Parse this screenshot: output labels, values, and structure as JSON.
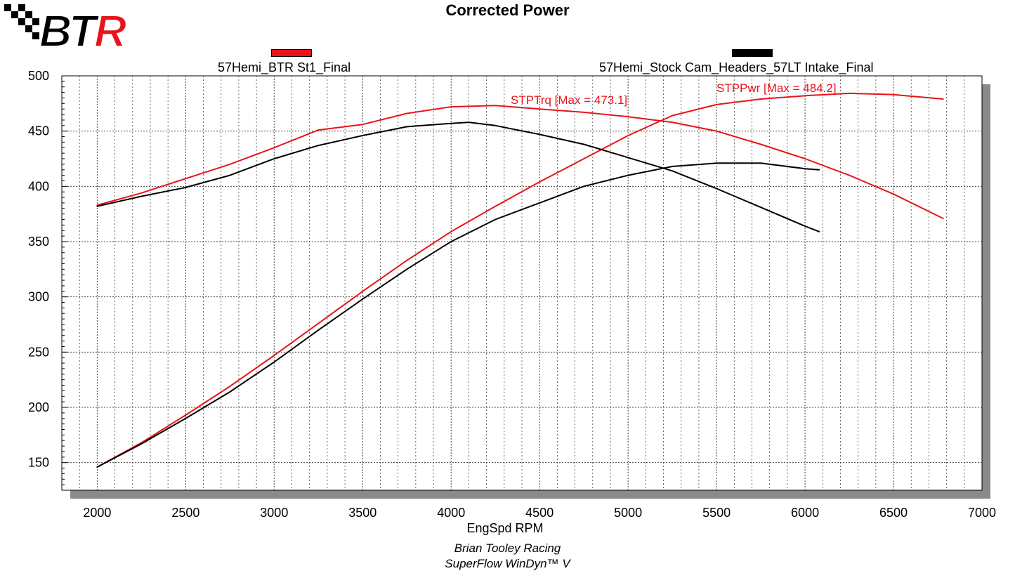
{
  "colors": {
    "red": "#e8141a",
    "black": "#000000",
    "grid": "#555555",
    "shadow": "#8a8a8a"
  },
  "logo_text": "BTR",
  "chart_data": {
    "type": "line",
    "title": "Corrected Power",
    "xlabel": "EngSpd RPM",
    "xlim": [
      1800,
      7000
    ],
    "ylim": [
      125,
      500
    ],
    "x_ticks": [
      "2000",
      "2500",
      "3000",
      "3500",
      "4000",
      "4500",
      "5000",
      "5500",
      "6000",
      "6500",
      "7000"
    ],
    "y_ticks": [
      "150",
      "200",
      "250",
      "300",
      "350",
      "400",
      "450",
      "500"
    ],
    "grid": true,
    "legend": [
      {
        "label": "57Hemi_BTR St1_Final",
        "color": "#e8141a"
      },
      {
        "label": "57Hemi_Stock Cam_Headers_57LT Intake_Final",
        "color": "#000000"
      }
    ],
    "annotations": [
      {
        "text": "STPTrq [Max = 473.1]",
        "color": "#e8141a"
      },
      {
        "text": "STPPwr [Max = 484.2]",
        "color": "#e8141a"
      }
    ],
    "series": [
      {
        "run": "57Hemi_BTR St1_Final",
        "quantity": "STPTrq",
        "color": "#e8141a",
        "x": [
          2000,
          2250,
          2500,
          2750,
          3000,
          3250,
          3500,
          3750,
          4000,
          4250,
          4500,
          4750,
          5000,
          5250,
          5500,
          5750,
          6000,
          6250,
          6500,
          6780
        ],
        "y": [
          383,
          394,
          407,
          420,
          435,
          451,
          456,
          466,
          472,
          473.1,
          470,
          467,
          463,
          458,
          450,
          438,
          425,
          410,
          393,
          371
        ]
      },
      {
        "run": "57Hemi_BTR St1_Final",
        "quantity": "STPPwr",
        "color": "#e8141a",
        "x": [
          2000,
          2250,
          2500,
          2750,
          3000,
          3250,
          3500,
          3750,
          4000,
          4250,
          4500,
          4750,
          5000,
          5250,
          5500,
          5750,
          6000,
          6250,
          6500,
          6780
        ],
        "y": [
          146,
          168,
          193,
          219,
          247,
          276,
          305,
          333,
          359,
          382,
          404,
          425,
          446,
          464,
          474,
          479,
          482,
          484.2,
          483,
          479
        ]
      },
      {
        "run": "57Hemi_Stock Cam_Headers_57LT Intake_Final",
        "quantity": "STPTrq",
        "color": "#000000",
        "x": [
          2000,
          2250,
          2500,
          2750,
          3000,
          3250,
          3500,
          3750,
          4000,
          4100,
          4250,
          4500,
          4750,
          5000,
          5250,
          5500,
          5750,
          6000,
          6080
        ],
        "y": [
          382,
          391,
          399,
          410,
          425,
          437,
          446,
          454,
          457,
          458,
          455,
          447,
          438,
          426,
          414,
          398,
          381,
          364,
          359
        ]
      },
      {
        "run": "57Hemi_Stock Cam_Headers_57LT Intake_Final",
        "quantity": "STPPwr",
        "color": "#000000",
        "x": [
          2000,
          2250,
          2500,
          2750,
          3000,
          3250,
          3500,
          3750,
          4000,
          4250,
          4500,
          4750,
          5000,
          5250,
          5500,
          5750,
          6000,
          6080
        ],
        "y": [
          146,
          167,
          190,
          214,
          241,
          270,
          298,
          325,
          350,
          370,
          385,
          400,
          410,
          418,
          421,
          421,
          416,
          415
        ]
      }
    ]
  },
  "footer": {
    "line1": "Brian Tooley Racing",
    "line2": "SuperFlow WinDyn™ V"
  }
}
